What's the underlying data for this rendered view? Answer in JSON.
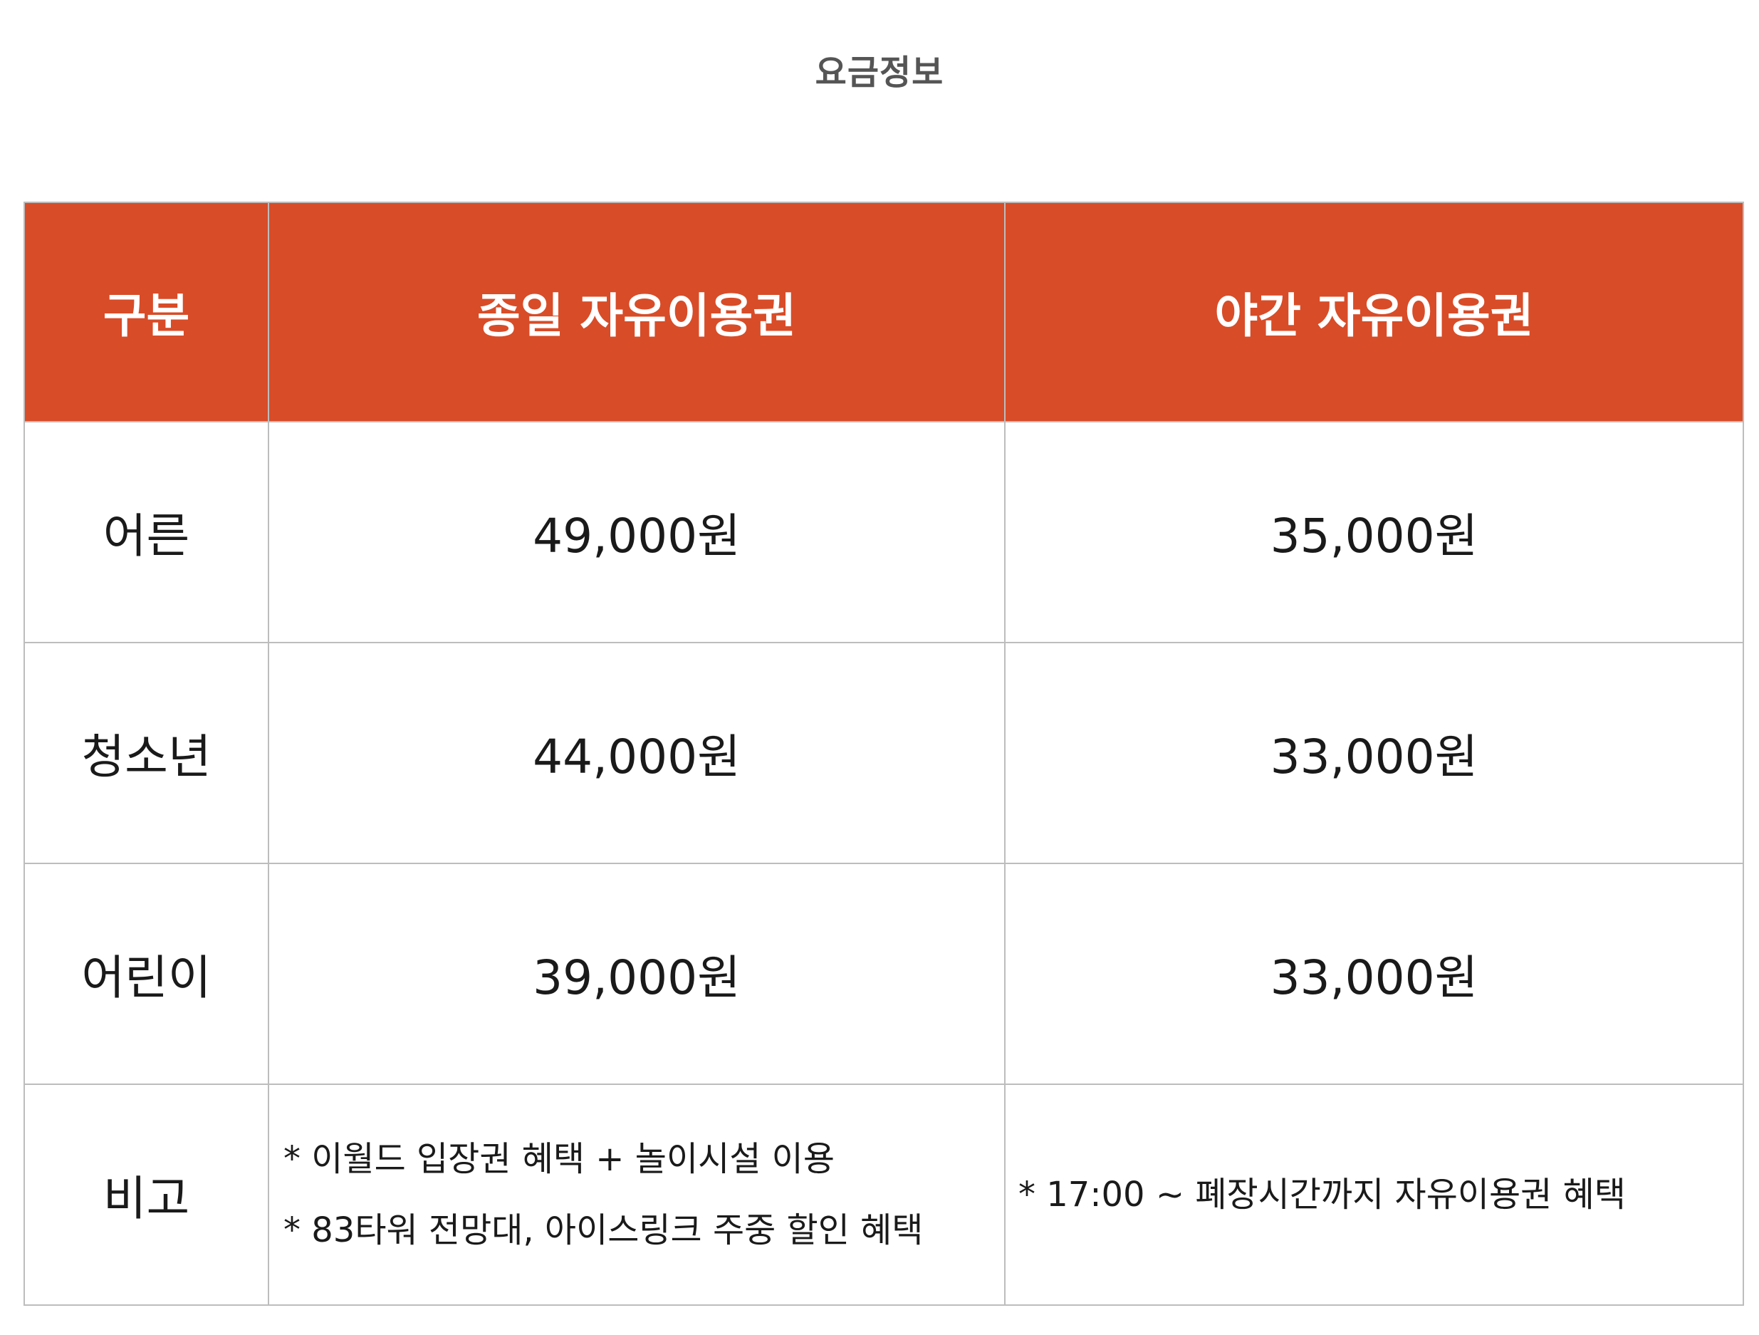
{
  "page": {
    "title": "요금정보"
  },
  "table": {
    "headers": [
      "구분",
      "종일 자유이용권",
      "야간 자유이용권"
    ],
    "colors": {
      "header_background": "#d84c28",
      "header_text": "#ffffff",
      "border": "#bdbdbd"
    },
    "rows": [
      {
        "label": "어른",
        "full_day": "49,000원",
        "night": "35,000원"
      },
      {
        "label": "청소년",
        "full_day": "44,000원",
        "night": "33,000원"
      },
      {
        "label": "어린이",
        "full_day": "39,000원",
        "night": "33,000원"
      }
    ],
    "notes_row": {
      "label": "비고",
      "full_day": [
        "* 이월드 입장권 혜택 + 놀이시설 이용",
        "* 83타워 전망대, 아이스링크 주중 할인 혜택"
      ],
      "night": [
        "* 17:00 ~ 폐장시간까지 자유이용권 혜택"
      ]
    }
  }
}
